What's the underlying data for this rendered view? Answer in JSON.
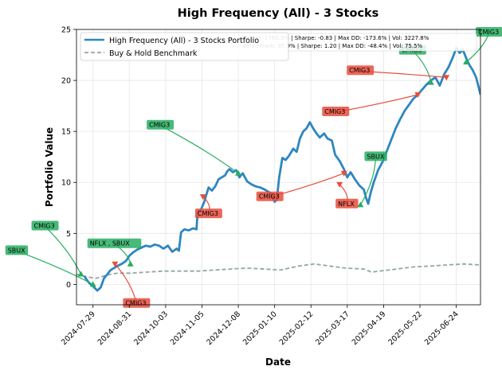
{
  "chart_data": {
    "type": "line",
    "title": "High Frequency (All) - 3 Stocks",
    "xlabel": "Date",
    "ylabel": "Portfolio Value",
    "ylim": [
      -2,
      25
    ],
    "xlim": [
      "2024-07-14",
      "2025-07-16"
    ],
    "yticks": [
      0,
      5,
      10,
      15,
      20,
      25
    ],
    "xticks": [
      "2024-07-29",
      "2024-08-31",
      "2024-10-03",
      "2024-11-05",
      "2024-12-08",
      "2025-01-10",
      "2025-02-12",
      "2025-03-17",
      "2025-04-19",
      "2025-05-22",
      "2025-06-24"
    ],
    "grid": true,
    "legend_position": "upper-left",
    "stats_text": [
      "Return: 1765.3% | Sharpe: -0.83 | Max DD: -173.6% | Vol: 3227.8%",
      "Benchmark: 95.9% | Sharpe: 1.20 | Max DD: -48.4% | Vol: 75.5%"
    ],
    "series": [
      {
        "name": "High Frequency (All) - 3 Stocks Portfolio",
        "color": "#2e86c1",
        "style": "solid",
        "points": [
          [
            "2024-07-21",
            0.8
          ],
          [
            "2024-07-25",
            0.2
          ],
          [
            "2024-07-29",
            -0.2
          ],
          [
            "2024-08-02",
            -0.6
          ],
          [
            "2024-08-05",
            -0.3
          ],
          [
            "2024-08-08",
            0.6
          ],
          [
            "2024-08-11",
            1.0
          ],
          [
            "2024-08-14",
            1.4
          ],
          [
            "2024-08-17",
            1.6
          ],
          [
            "2024-08-20",
            1.8
          ],
          [
            "2024-08-24",
            2.0
          ],
          [
            "2024-08-28",
            2.3
          ],
          [
            "2024-08-31",
            2.8
          ],
          [
            "2024-09-03",
            3.1
          ],
          [
            "2024-09-07",
            3.4
          ],
          [
            "2024-09-11",
            3.6
          ],
          [
            "2024-09-15",
            3.8
          ],
          [
            "2024-09-19",
            3.7
          ],
          [
            "2024-09-23",
            3.9
          ],
          [
            "2024-09-27",
            3.8
          ],
          [
            "2024-10-01",
            3.5
          ],
          [
            "2024-10-05",
            3.8
          ],
          [
            "2024-10-09",
            3.2
          ],
          [
            "2024-10-13",
            3.5
          ],
          [
            "2024-10-15",
            3.3
          ],
          [
            "2024-10-17",
            5.1
          ],
          [
            "2024-10-20",
            5.4
          ],
          [
            "2024-10-24",
            5.3
          ],
          [
            "2024-10-28",
            5.5
          ],
          [
            "2024-10-31",
            5.4
          ],
          [
            "2024-11-01",
            7.1
          ],
          [
            "2024-11-04",
            7.3
          ],
          [
            "2024-11-07",
            8.1
          ],
          [
            "2024-11-09",
            8.8
          ],
          [
            "2024-11-11",
            9.5
          ],
          [
            "2024-11-14",
            9.2
          ],
          [
            "2024-11-17",
            9.6
          ],
          [
            "2024-11-20",
            10.3
          ],
          [
            "2024-11-23",
            10.5
          ],
          [
            "2024-11-26",
            10.7
          ],
          [
            "2024-11-28",
            11.1
          ],
          [
            "2024-11-30",
            11.3
          ],
          [
            "2024-12-03",
            11.0
          ],
          [
            "2024-12-06",
            11.2
          ],
          [
            "2024-12-09",
            10.5
          ],
          [
            "2024-12-12",
            10.9
          ],
          [
            "2024-12-16",
            10.1
          ],
          [
            "2024-12-20",
            9.8
          ],
          [
            "2024-12-24",
            9.6
          ],
          [
            "2024-12-28",
            9.5
          ],
          [
            "2025-01-01",
            9.3
          ],
          [
            "2025-01-04",
            9.1
          ],
          [
            "2025-01-07",
            8.9
          ],
          [
            "2025-01-10",
            8.1
          ],
          [
            "2025-01-12",
            8.3
          ],
          [
            "2025-01-14",
            10.4
          ],
          [
            "2025-01-17",
            12.4
          ],
          [
            "2025-01-20",
            12.2
          ],
          [
            "2025-01-23",
            12.6
          ],
          [
            "2025-01-27",
            13.3
          ],
          [
            "2025-01-30",
            13.0
          ],
          [
            "2025-02-02",
            14.3
          ],
          [
            "2025-02-05",
            15.0
          ],
          [
            "2025-02-08",
            15.3
          ],
          [
            "2025-02-11",
            15.9
          ],
          [
            "2025-02-14",
            15.3
          ],
          [
            "2025-02-17",
            14.8
          ],
          [
            "2025-02-20",
            14.4
          ],
          [
            "2025-02-24",
            14.8
          ],
          [
            "2025-02-27",
            14.3
          ],
          [
            "2025-03-03",
            14.1
          ],
          [
            "2025-03-06",
            12.7
          ],
          [
            "2025-03-10",
            12.1
          ],
          [
            "2025-03-14",
            11.3
          ],
          [
            "2025-03-17",
            10.5
          ],
          [
            "2025-03-20",
            11.0
          ],
          [
            "2025-03-24",
            10.3
          ],
          [
            "2025-03-28",
            9.7
          ],
          [
            "2025-04-01",
            9.3
          ],
          [
            "2025-04-03",
            8.5
          ],
          [
            "2025-04-05",
            7.9
          ],
          [
            "2025-04-07",
            8.9
          ],
          [
            "2025-04-10",
            10.0
          ],
          [
            "2025-04-14",
            11.2
          ],
          [
            "2025-04-18",
            12.0
          ],
          [
            "2025-04-22",
            13.1
          ],
          [
            "2025-04-26",
            14.2
          ],
          [
            "2025-04-30",
            15.3
          ],
          [
            "2025-05-04",
            16.2
          ],
          [
            "2025-05-08",
            17.0
          ],
          [
            "2025-05-12",
            17.6
          ],
          [
            "2025-05-16",
            18.2
          ],
          [
            "2025-05-20",
            18.6
          ],
          [
            "2025-05-24",
            19.1
          ],
          [
            "2025-05-28",
            19.6
          ],
          [
            "2025-06-01",
            20.0
          ],
          [
            "2025-06-05",
            20.3
          ],
          [
            "2025-06-09",
            19.5
          ],
          [
            "2025-06-13",
            20.6
          ],
          [
            "2025-06-17",
            21.3
          ],
          [
            "2025-06-21",
            22.3
          ],
          [
            "2025-06-24",
            23.2
          ],
          [
            "2025-06-27",
            22.7
          ],
          [
            "2025-06-30",
            23.0
          ],
          [
            "2025-07-03",
            22.2
          ],
          [
            "2025-07-06",
            21.5
          ],
          [
            "2025-07-09",
            21.0
          ],
          [
            "2025-07-12",
            20.3
          ],
          [
            "2025-07-14",
            19.5
          ],
          [
            "2025-07-16",
            18.6
          ]
        ]
      },
      {
        "name": "Buy & Hold Benchmark",
        "color": "#95a5a6",
        "style": "dashed",
        "points": [
          [
            "2024-07-14",
            1.0
          ],
          [
            "2024-07-25",
            0.7
          ],
          [
            "2024-08-01",
            0.6
          ],
          [
            "2024-08-10",
            0.9
          ],
          [
            "2024-08-20",
            1.1
          ],
          [
            "2024-09-01",
            1.1
          ],
          [
            "2024-09-15",
            1.2
          ],
          [
            "2024-10-01",
            1.3
          ],
          [
            "2024-10-15",
            1.3
          ],
          [
            "2024-11-01",
            1.3
          ],
          [
            "2024-11-15",
            1.4
          ],
          [
            "2024-12-01",
            1.5
          ],
          [
            "2024-12-15",
            1.6
          ],
          [
            "2025-01-01",
            1.5
          ],
          [
            "2025-01-15",
            1.4
          ],
          [
            "2025-02-01",
            1.8
          ],
          [
            "2025-02-15",
            2.0
          ],
          [
            "2025-03-01",
            1.8
          ],
          [
            "2025-03-15",
            1.6
          ],
          [
            "2025-04-01",
            1.5
          ],
          [
            "2025-04-08",
            1.2
          ],
          [
            "2025-04-15",
            1.3
          ],
          [
            "2025-05-01",
            1.5
          ],
          [
            "2025-05-15",
            1.7
          ],
          [
            "2025-06-01",
            1.8
          ],
          [
            "2025-06-15",
            1.9
          ],
          [
            "2025-07-01",
            2.0
          ],
          [
            "2025-07-16",
            1.9
          ]
        ]
      }
    ],
    "annotations": [
      {
        "label": "SBUX",
        "type": "buy",
        "x": "2024-07-29",
        "y": 0.0,
        "color": "#27ae60"
      },
      {
        "label": "CMIG3",
        "type": "buy",
        "x": "2024-07-18",
        "y": 1.0,
        "color": "#27ae60"
      },
      {
        "label": "NFLX , SBUX",
        "type": "buy",
        "x": "2024-09-01",
        "y": 2.0,
        "color": "#27ae60"
      },
      {
        "label": "CMIG3",
        "type": "sell",
        "x": "2024-08-18",
        "y": 2.0,
        "color": "#e74c3c"
      },
      {
        "label": "CMIG3",
        "type": "sell",
        "x": "2024-11-06",
        "y": 8.6,
        "color": "#e74c3c"
      },
      {
        "label": "CMIG3",
        "type": "buy",
        "x": "2024-12-08",
        "y": 10.9,
        "color": "#27ae60"
      },
      {
        "label": "CMIG3",
        "type": "sell",
        "x": "2025-03-14",
        "y": 10.9,
        "color": "#e74c3c"
      },
      {
        "label": "NFLX",
        "type": "sell",
        "x": "2025-03-10",
        "y": 9.8,
        "color": "#e74c3c"
      },
      {
        "label": "SBUX",
        "type": "buy",
        "x": "2025-03-29",
        "y": 7.8,
        "color": "#27ae60"
      },
      {
        "label": "CMIG3",
        "type": "sell",
        "x": "2025-05-20",
        "y": 18.6,
        "color": "#e74c3c"
      },
      {
        "label": "CMIG3",
        "type": "buy",
        "x": "2025-06-01",
        "y": 19.8,
        "color": "#27ae60"
      },
      {
        "label": "CMIG3",
        "type": "sell",
        "x": "2025-06-15",
        "y": 20.3,
        "color": "#e74c3c"
      },
      {
        "label": "CMIG3",
        "type": "buy",
        "x": "2025-07-03",
        "y": 21.8,
        "color": "#27ae60"
      }
    ]
  }
}
